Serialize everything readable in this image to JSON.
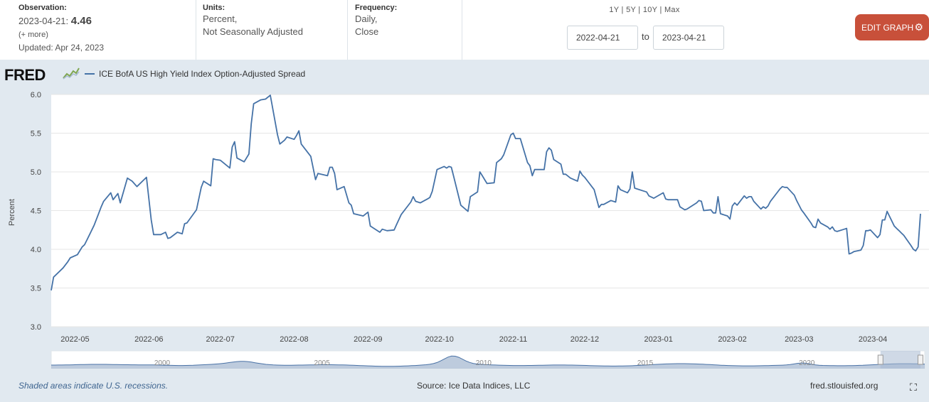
{
  "header": {
    "observation_label": "Observation:",
    "observation_date": "2023-04-21:",
    "observation_value": "4.46",
    "more": "(+ more)",
    "updated": "Updated: Apr 24, 2023",
    "units_label": "Units:",
    "units_line1": "Percent,",
    "units_line2": "Not Seasonally Adjusted",
    "frequency_label": "Frequency:",
    "frequency_line1": "Daily,",
    "frequency_line2": "Close"
  },
  "controls": {
    "ranges": [
      "1Y",
      "5Y",
      "10Y",
      "Max"
    ],
    "range_separator": " | ",
    "start_date": "2022-04-21",
    "to_label": "to",
    "end_date": "2023-04-21",
    "edit_graph_label": "EDIT GRAPH",
    "edit_graph_icon": "gear-icon"
  },
  "colors": {
    "series": "#4572a7",
    "edit_button": "#c8503a",
    "navigator_fill": "#a7bad2",
    "navigator_line": "#4a72a6",
    "background": "#e1e9f0"
  },
  "logo": {
    "text": "FRED"
  },
  "footer": {
    "recession_note": "Shaded areas indicate U.S. recessions.",
    "source": "Source: Ice Data Indices, LLC",
    "site": "fred.stlouisfed.org"
  },
  "navigator": {
    "year_labels": [
      "2000",
      "2005",
      "2010",
      "2015",
      "2020"
    ],
    "selection_start": 0.954,
    "selection_end": 1.0
  },
  "chart_data": {
    "type": "line",
    "title": "",
    "xlabel": "",
    "ylabel": "Percent",
    "ylim": [
      3.0,
      6.0
    ],
    "yticks": [
      "3.0",
      "3.5",
      "4.0",
      "4.5",
      "5.0",
      "5.5",
      "6.0"
    ],
    "xlim": [
      "2022-04-21",
      "2023-04-21"
    ],
    "xticks": [
      "2022-05",
      "2022-06",
      "2022-07",
      "2022-08",
      "2022-09",
      "2022-10",
      "2022-11",
      "2022-12",
      "2023-01",
      "2023-02",
      "2023-03",
      "2023-04"
    ],
    "grid": true,
    "legend": "top-left",
    "series": [
      {
        "name": "ICE BofA US High Yield Index Option-Adjusted Spread",
        "color": "#4572a7",
        "points": [
          [
            "2022-04-21",
            3.47
          ],
          [
            "2022-04-22",
            3.64
          ],
          [
            "2022-04-26",
            3.76
          ],
          [
            "2022-04-28",
            3.84
          ],
          [
            "2022-04-29",
            3.89
          ],
          [
            "2022-05-02",
            3.93
          ],
          [
            "2022-05-04",
            4.03
          ],
          [
            "2022-05-05",
            4.06
          ],
          [
            "2022-05-06",
            4.12
          ],
          [
            "2022-05-09",
            4.31
          ],
          [
            "2022-05-11",
            4.47
          ],
          [
            "2022-05-12",
            4.55
          ],
          [
            "2022-05-13",
            4.62
          ],
          [
            "2022-05-16",
            4.73
          ],
          [
            "2022-05-17",
            4.64
          ],
          [
            "2022-05-19",
            4.72
          ],
          [
            "2022-05-20",
            4.6
          ],
          [
            "2022-05-23",
            4.92
          ],
          [
            "2022-05-25",
            4.88
          ],
          [
            "2022-05-27",
            4.81
          ],
          [
            "2022-05-31",
            4.93
          ],
          [
            "2022-06-02",
            4.38
          ],
          [
            "2022-06-03",
            4.19
          ],
          [
            "2022-06-06",
            4.19
          ],
          [
            "2022-06-08",
            4.22
          ],
          [
            "2022-06-09",
            4.14
          ],
          [
            "2022-06-10",
            4.15
          ],
          [
            "2022-06-13",
            4.22
          ],
          [
            "2022-06-15",
            4.2
          ],
          [
            "2022-06-16",
            4.33
          ],
          [
            "2022-06-17",
            4.34
          ],
          [
            "2022-06-21",
            4.51
          ],
          [
            "2022-06-23",
            4.8
          ],
          [
            "2022-06-24",
            4.88
          ],
          [
            "2022-06-27",
            4.82
          ],
          [
            "2022-06-28",
            5.17
          ],
          [
            "2022-06-29",
            5.16
          ],
          [
            "2022-07-01",
            5.15
          ],
          [
            "2022-07-05",
            5.05
          ],
          [
            "2022-07-06",
            5.32
          ],
          [
            "2022-07-07",
            5.39
          ],
          [
            "2022-07-08",
            5.18
          ],
          [
            "2022-07-11",
            5.13
          ],
          [
            "2022-07-13",
            5.23
          ],
          [
            "2022-07-14",
            5.62
          ],
          [
            "2022-07-15",
            5.88
          ],
          [
            "2022-07-18",
            5.93
          ],
          [
            "2022-07-20",
            5.94
          ],
          [
            "2022-07-22",
            5.99
          ],
          [
            "2022-07-25",
            5.48
          ],
          [
            "2022-07-26",
            5.36
          ],
          [
            "2022-07-28",
            5.41
          ],
          [
            "2022-07-29",
            5.45
          ],
          [
            "2022-08-01",
            5.42
          ],
          [
            "2022-08-02",
            5.47
          ],
          [
            "2022-08-03",
            5.53
          ],
          [
            "2022-08-04",
            5.36
          ],
          [
            "2022-08-08",
            5.2
          ],
          [
            "2022-08-10",
            4.9
          ],
          [
            "2022-08-11",
            4.98
          ],
          [
            "2022-08-15",
            4.95
          ],
          [
            "2022-08-16",
            5.06
          ],
          [
            "2022-08-17",
            5.06
          ],
          [
            "2022-08-18",
            4.98
          ],
          [
            "2022-08-19",
            4.77
          ],
          [
            "2022-08-22",
            4.81
          ],
          [
            "2022-08-24",
            4.6
          ],
          [
            "2022-08-25",
            4.57
          ],
          [
            "2022-08-26",
            4.46
          ],
          [
            "2022-08-30",
            4.43
          ],
          [
            "2022-09-01",
            4.48
          ],
          [
            "2022-09-02",
            4.3
          ],
          [
            "2022-09-06",
            4.22
          ],
          [
            "2022-09-07",
            4.26
          ],
          [
            "2022-09-09",
            4.24
          ],
          [
            "2022-09-12",
            4.25
          ],
          [
            "2022-09-13",
            4.32
          ],
          [
            "2022-09-15",
            4.45
          ],
          [
            "2022-09-19",
            4.61
          ],
          [
            "2022-09-20",
            4.68
          ],
          [
            "2022-09-21",
            4.62
          ],
          [
            "2022-09-23",
            4.6
          ],
          [
            "2022-09-26",
            4.65
          ],
          [
            "2022-09-27",
            4.67
          ],
          [
            "2022-09-28",
            4.75
          ],
          [
            "2022-09-30",
            5.03
          ],
          [
            "2022-10-03",
            5.07
          ],
          [
            "2022-10-04",
            5.05
          ],
          [
            "2022-10-05",
            5.07
          ],
          [
            "2022-10-06",
            5.06
          ],
          [
            "2022-10-07",
            4.94
          ],
          [
            "2022-10-10",
            4.57
          ],
          [
            "2022-10-13",
            4.49
          ],
          [
            "2022-10-14",
            4.68
          ],
          [
            "2022-10-17",
            4.74
          ],
          [
            "2022-10-18",
            5.0
          ],
          [
            "2022-10-19",
            4.95
          ],
          [
            "2022-10-20",
            4.9
          ],
          [
            "2022-10-21",
            4.85
          ],
          [
            "2022-10-24",
            4.86
          ],
          [
            "2022-10-25",
            5.12
          ],
          [
            "2022-10-27",
            5.17
          ],
          [
            "2022-10-28",
            5.22
          ],
          [
            "2022-10-31",
            5.48
          ],
          [
            "2022-11-01",
            5.5
          ],
          [
            "2022-11-02",
            5.43
          ],
          [
            "2022-11-03",
            5.43
          ],
          [
            "2022-11-04",
            5.43
          ],
          [
            "2022-11-07",
            5.12
          ],
          [
            "2022-11-08",
            5.08
          ],
          [
            "2022-11-09",
            4.95
          ],
          [
            "2022-11-10",
            5.03
          ],
          [
            "2022-11-14",
            5.03
          ],
          [
            "2022-11-15",
            5.26
          ],
          [
            "2022-11-16",
            5.31
          ],
          [
            "2022-11-17",
            5.28
          ],
          [
            "2022-11-18",
            5.16
          ],
          [
            "2022-11-21",
            5.1
          ],
          [
            "2022-11-22",
            4.97
          ],
          [
            "2022-11-23",
            4.97
          ],
          [
            "2022-11-25",
            4.92
          ],
          [
            "2022-11-28",
            4.88
          ],
          [
            "2022-11-29",
            5.01
          ],
          [
            "2022-11-30",
            4.96
          ],
          [
            "2022-12-01",
            4.93
          ],
          [
            "2022-12-02",
            4.89
          ],
          [
            "2022-12-05",
            4.77
          ],
          [
            "2022-12-07",
            4.54
          ],
          [
            "2022-12-08",
            4.58
          ],
          [
            "2022-12-09",
            4.58
          ],
          [
            "2022-12-12",
            4.63
          ],
          [
            "2022-12-14",
            4.61
          ],
          [
            "2022-12-15",
            4.82
          ],
          [
            "2022-12-16",
            4.77
          ],
          [
            "2022-12-19",
            4.73
          ],
          [
            "2022-12-20",
            4.78
          ],
          [
            "2022-12-21",
            5.0
          ],
          [
            "2022-12-22",
            4.79
          ],
          [
            "2022-12-23",
            4.78
          ],
          [
            "2022-12-27",
            4.74
          ],
          [
            "2022-12-28",
            4.69
          ],
          [
            "2022-12-30",
            4.66
          ],
          [
            "2023-01-03",
            4.73
          ],
          [
            "2023-01-04",
            4.65
          ],
          [
            "2023-01-05",
            4.64
          ],
          [
            "2023-01-09",
            4.64
          ],
          [
            "2023-01-10",
            4.55
          ],
          [
            "2023-01-12",
            4.51
          ],
          [
            "2023-01-13",
            4.52
          ],
          [
            "2023-01-17",
            4.6
          ],
          [
            "2023-01-18",
            4.63
          ],
          [
            "2023-01-19",
            4.62
          ],
          [
            "2023-01-20",
            4.5
          ],
          [
            "2023-01-23",
            4.51
          ],
          [
            "2023-01-24",
            4.47
          ],
          [
            "2023-01-25",
            4.47
          ],
          [
            "2023-01-26",
            4.68
          ],
          [
            "2023-01-27",
            4.46
          ],
          [
            "2023-01-30",
            4.43
          ],
          [
            "2023-01-31",
            4.39
          ],
          [
            "2023-02-01",
            4.56
          ],
          [
            "2023-02-02",
            4.6
          ],
          [
            "2023-02-03",
            4.57
          ],
          [
            "2023-02-06",
            4.69
          ],
          [
            "2023-02-07",
            4.66
          ],
          [
            "2023-02-08",
            4.68
          ],
          [
            "2023-02-09",
            4.68
          ],
          [
            "2023-02-10",
            4.62
          ],
          [
            "2023-02-13",
            4.52
          ],
          [
            "2023-02-14",
            4.55
          ],
          [
            "2023-02-15",
            4.53
          ],
          [
            "2023-02-16",
            4.56
          ],
          [
            "2023-02-17",
            4.62
          ],
          [
            "2023-02-21",
            4.78
          ],
          [
            "2023-02-22",
            4.81
          ],
          [
            "2023-02-23",
            4.8
          ],
          [
            "2023-02-24",
            4.8
          ],
          [
            "2023-02-27",
            4.7
          ],
          [
            "2023-02-28",
            4.63
          ],
          [
            "2023-03-01",
            4.57
          ],
          [
            "2023-03-02",
            4.51
          ],
          [
            "2023-03-03",
            4.47
          ],
          [
            "2023-03-06",
            4.34
          ],
          [
            "2023-03-07",
            4.29
          ],
          [
            "2023-03-08",
            4.28
          ],
          [
            "2023-03-09",
            4.39
          ],
          [
            "2023-03-10",
            4.34
          ],
          [
            "2023-03-13",
            4.29
          ],
          [
            "2023-03-14",
            4.26
          ],
          [
            "2023-03-15",
            4.29
          ],
          [
            "2023-03-16",
            4.24
          ],
          [
            "2023-03-17",
            4.23
          ],
          [
            "2023-03-20",
            4.26
          ],
          [
            "2023-03-21",
            4.27
          ],
          [
            "2023-03-22",
            3.94
          ],
          [
            "2023-03-23",
            3.95
          ],
          [
            "2023-03-24",
            3.97
          ],
          [
            "2023-03-27",
            3.99
          ],
          [
            "2023-03-28",
            4.05
          ],
          [
            "2023-03-29",
            4.24
          ],
          [
            "2023-03-30",
            4.24
          ],
          [
            "2023-03-31",
            4.25
          ],
          [
            "2023-04-03",
            4.15
          ],
          [
            "2023-04-04",
            4.19
          ],
          [
            "2023-04-05",
            4.38
          ],
          [
            "2023-04-06",
            4.38
          ],
          [
            "2023-04-07",
            4.49
          ],
          [
            "2023-04-10",
            4.3
          ],
          [
            "2023-04-11",
            4.27
          ],
          [
            "2023-04-12",
            4.24
          ],
          [
            "2023-04-13",
            4.21
          ],
          [
            "2023-04-14",
            4.18
          ],
          [
            "2023-04-17",
            4.05
          ],
          [
            "2023-04-18",
            4.0
          ],
          [
            "2023-04-19",
            3.98
          ],
          [
            "2023-04-20",
            4.03
          ],
          [
            "2023-04-21",
            4.46
          ]
        ]
      }
    ]
  }
}
